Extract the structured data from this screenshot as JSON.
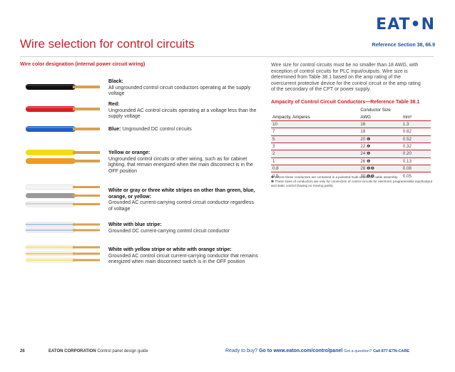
{
  "header": {
    "logo_text": "EAT•N",
    "title": "Wire selection for control circuits",
    "reference": "Reference Section 38, 66.9"
  },
  "colors": {
    "accent_red": "#c8202a",
    "brand_blue": "#1e4fa0",
    "copper": "#d9a050"
  },
  "wire_section": {
    "heading": "Wire color designation (internal power circuit wiring)",
    "entries": [
      {
        "name": "Black:",
        "text": "All ungrounded control circuit conductors operating at the supply voltage"
      },
      {
        "name": "Red:",
        "text": "Ungrounded AC control circuits operating at a voltage less than the supply voltage"
      },
      {
        "name": "Blue:",
        "text": "Ungrounded DC control circuits"
      },
      {
        "name": "Yellow or orange:",
        "text": "Ungrounded control circuits or other wiring, such as for cabinet lighting, that remain energized when the main disconnect is in the OFF position"
      },
      {
        "name": "White or gray or three white stripes on other than green, blue, orange, or yellow:",
        "text": "Grounded AC current-carrying control circuit conductor regardless of voltage"
      },
      {
        "name": "White with blue stripe:",
        "text": "Grounded DC current-carrying control circuit conductor"
      },
      {
        "name": "White with yellow stripe or white with orange stripe:",
        "text": "Grounded AC control circuit current-carrying conductor that remains energized when main disconnect switch is in the OFF position"
      }
    ]
  },
  "intro_text": "Wire size for control circuits must be no smaller than 18 AWG, with exception of control circuits for PLC input/outputs. Wire size is determined from Table 38.1 based on the amp rating of the overcurrent protective device for the control circuit or the amp rating of the secondary of the CPT or power supply.",
  "ampacity": {
    "title": "Ampacity of Control Circuit Conductors—Reference Table 38.1",
    "group_header": "Conductor Size",
    "col_amps": "Ampacity, Amperes",
    "col_awg": "AWG",
    "col_mm": "mm²",
    "rows": [
      {
        "amps": "10",
        "awg": "16",
        "note": "",
        "mm": "1.3"
      },
      {
        "amps": "7",
        "awg": "18",
        "note": "",
        "mm": "0.82"
      },
      {
        "amps": "5",
        "awg": "20",
        "note": "❶",
        "mm": "0.52"
      },
      {
        "amps": "3",
        "awg": "22",
        "note": "❶",
        "mm": "0.32"
      },
      {
        "amps": "2",
        "awg": "24",
        "note": "❶",
        "mm": "0.20"
      },
      {
        "amps": "1",
        "awg": "26",
        "note": "❶",
        "mm": "0.13"
      },
      {
        "amps": "0.8",
        "awg": "28",
        "note": "❶❷",
        "mm": "0.08"
      },
      {
        "amps": "0.5",
        "awg": "30",
        "note": "❶❷",
        "mm": "0.05"
      }
    ],
    "notes": [
      {
        "mark": "❶",
        "text": "Where these conductors are contained in a jacketed multi-conductor cable assembly."
      },
      {
        "mark": "❷",
        "text": "These sizes of conductors are only for connection of control circuits for electronic programmable input/output and static control (having no moving parts)."
      }
    ]
  },
  "footer": {
    "page": "26",
    "corp": "EATON CORPORATION",
    "guide": "Control panel design guide",
    "ready": "Ready to buy?",
    "goto": "Go to www.eaton.com/controlpanel",
    "question": "Got a question?",
    "call": "Call 877-ETN-CARE"
  }
}
